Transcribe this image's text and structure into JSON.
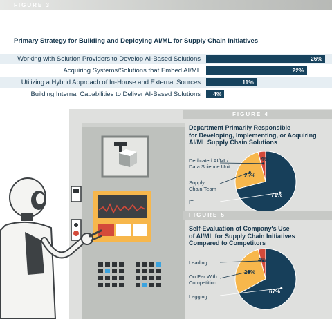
{
  "figure3": {
    "label": "FIGURE 3",
    "title": "Primary Strategy for Building and Deploying AI/ML for Supply Chain Initiatives",
    "chart_data": {
      "type": "bar",
      "categories": [
        "Working with Solution Providers to Develop AI-Based Solutions",
        "Acquiring Systems/Solutions that Embed AI/ML",
        "Utilizing a Hybrid Approach of In-House and External Sources",
        "Building Internal Capabilities to Deliver AI-Based Solutions"
      ],
      "values": [
        26,
        22,
        11,
        4
      ],
      "value_labels": [
        "26%",
        "22%",
        "11%",
        "4%"
      ]
    }
  },
  "figure4": {
    "label": "FIGURE 4",
    "title_lines": [
      "Department Primarily Responsible",
      "for Developing, Implementing, or Acquiring",
      "AI/ML Supply Chain Solutions"
    ],
    "chart_data": {
      "type": "pie",
      "categories": [
        "Dedicated AI/ML/ Data Science Unit",
        "Supply Chain Team",
        "IT"
      ],
      "category_lines": [
        [
          "Dedicated AI/ML/",
          "Data Science Unit"
        ],
        [
          "Supply",
          "Chain Team"
        ],
        [
          "IT"
        ]
      ],
      "values": [
        4,
        25,
        71
      ],
      "value_labels": [
        "4%",
        "25%",
        "71%"
      ],
      "colors": [
        "#d44a3a",
        "#f7b74c",
        "#173f5a"
      ]
    }
  },
  "figure5": {
    "label": "FIGURE 5",
    "title_lines": [
      "Self-Evaluation of Company's Use",
      "of AI/ML for Supply Chain Initiatives",
      "Compared to Competitors"
    ],
    "chart_data": {
      "type": "pie",
      "categories": [
        "Leading",
        "On Par With Competition",
        "Lagging"
      ],
      "category_lines": [
        [
          "Leading"
        ],
        [
          "On Par With",
          "Competition"
        ],
        [
          "Lagging"
        ]
      ],
      "values": [
        4,
        29,
        67
      ],
      "value_labels": [
        "4%",
        "29%",
        "67%"
      ],
      "colors": [
        "#d44a3a",
        "#f7b74c",
        "#173f5a"
      ]
    }
  }
}
